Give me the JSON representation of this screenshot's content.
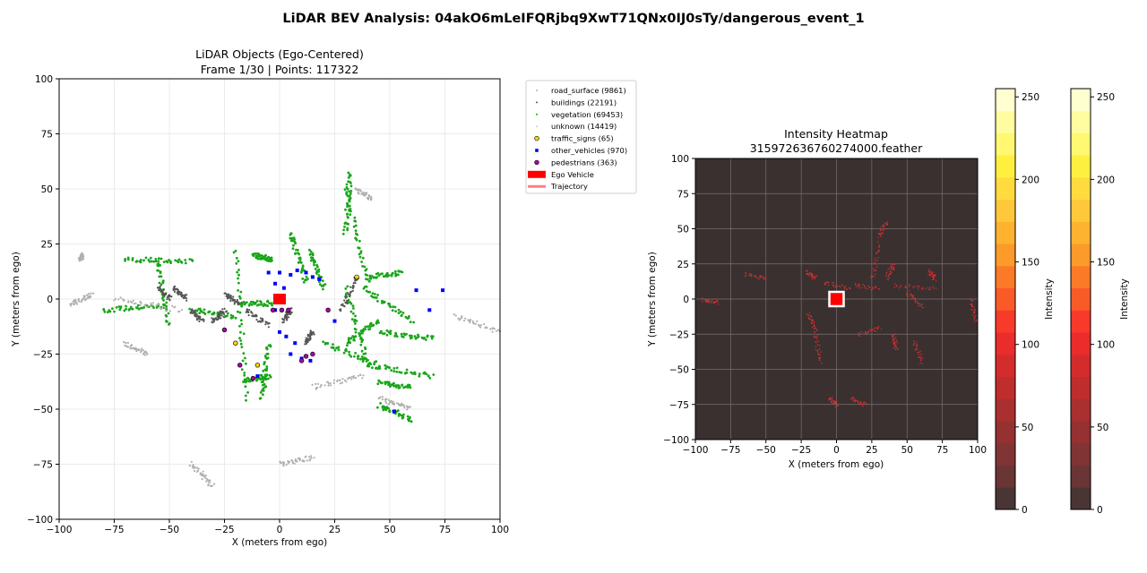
{
  "figure": {
    "title": "LiDAR BEV Analysis: 04akO6mLeIFQRjbq9XwT71QNx0IJ0sTy/dangerous_event_1"
  },
  "chart_data": [
    {
      "type": "scatter",
      "title": "LiDAR Objects (Ego-Centered)",
      "subtitle": "Frame 1/30 | Points: 117322",
      "xlabel": "X (meters from ego)",
      "ylabel": "Y (meters from ego)",
      "xlim": [
        -100,
        100
      ],
      "ylim": [
        -100,
        100
      ],
      "xticks": [
        -100,
        -75,
        -50,
        -25,
        0,
        25,
        50,
        75,
        100
      ],
      "yticks": [
        -100,
        -75,
        -50,
        -25,
        0,
        25,
        50,
        75,
        100
      ],
      "grid": true,
      "legend_position": "outside-top-right",
      "legend": [
        {
          "label": "road_surface (9861)",
          "marker": "dot",
          "color": "#b0b0b0"
        },
        {
          "label": "buildings (22191)",
          "marker": "dot",
          "color": "#555555"
        },
        {
          "label": "vegetation (69453)",
          "marker": "dot",
          "color": "#1aa51a"
        },
        {
          "label": "unknown (14419)",
          "marker": "dot",
          "color": "#cccccc"
        },
        {
          "label": "traffic_signs (65)",
          "marker": "circle",
          "color": "#ffd700"
        },
        {
          "label": "other_vehicles (970)",
          "marker": "square",
          "color": "#0000ff"
        },
        {
          "label": "pedestrians (363)",
          "marker": "circle",
          "color": "#aa00aa"
        },
        {
          "label": "Ego Vehicle",
          "marker": "rect",
          "color": "#ff0000"
        },
        {
          "label": "Trajectory",
          "marker": "line",
          "color": "#ff8080"
        }
      ],
      "series": [
        {
          "name": "vegetation",
          "color": "#1aa51a",
          "segments": [
            [
              [
                -70,
                18
              ],
              [
                -40,
                17
              ]
            ],
            [
              [
                -55,
                17
              ],
              [
                -50,
                -12
              ]
            ],
            [
              [
                -20,
                22
              ],
              [
                -15,
                -45
              ]
            ],
            [
              [
                -40,
                -5
              ],
              [
                -20,
                -8
              ]
            ],
            [
              [
                -80,
                -5
              ],
              [
                -52,
                -3
              ]
            ],
            [
              [
                -18,
                -2
              ],
              [
                -2,
                -2
              ]
            ],
            [
              [
                -5,
                -35
              ],
              [
                -16,
                -37
              ]
            ],
            [
              [
                -8,
                -45
              ],
              [
                -5,
                -20
              ]
            ],
            [
              [
                5,
                30
              ],
              [
                12,
                8
              ]
            ],
            [
              [
                14,
                22
              ],
              [
                20,
                5
              ]
            ],
            [
              [
                30,
                5
              ],
              [
                40,
                -30
              ]
            ],
            [
              [
                38,
                5
              ],
              [
                60,
                -10
              ]
            ],
            [
              [
                40,
                10
              ],
              [
                55,
                12
              ]
            ],
            [
              [
                30,
                -20
              ],
              [
                45,
                -10
              ]
            ],
            [
              [
                40,
                -30
              ],
              [
                70,
                -35
              ]
            ],
            [
              [
                45,
                -48
              ],
              [
                60,
                -55
              ]
            ],
            [
              [
                30,
                50
              ],
              [
                40,
                8
              ]
            ],
            [
              [
                32,
                58
              ],
              [
                30,
                30
              ]
            ],
            [
              [
                45,
                -15
              ],
              [
                70,
                -18
              ]
            ],
            [
              [
                20,
                -20
              ],
              [
                45,
                -30
              ]
            ],
            [
              [
                -12,
                20
              ],
              [
                -3,
                18
              ]
            ],
            [
              [
                45,
                -38
              ],
              [
                60,
                -40
              ]
            ]
          ]
        },
        {
          "name": "road_surface",
          "color": "#b0b0b0",
          "segments": [
            [
              [
                -95,
                -2
              ],
              [
                -85,
                2
              ]
            ],
            [
              [
                -75,
                0
              ],
              [
                -45,
                -5
              ]
            ],
            [
              [
                15,
                -40
              ],
              [
                38,
                -35
              ]
            ],
            [
              [
                80,
                -8
              ],
              [
                100,
                -15
              ]
            ],
            [
              [
                -40,
                -75
              ],
              [
                -30,
                -85
              ]
            ],
            [
              [
                0,
                -75
              ],
              [
                15,
                -72
              ]
            ],
            [
              [
                45,
                -45
              ],
              [
                60,
                -50
              ]
            ],
            [
              [
                -90,
                20
              ],
              [
                -90,
                18
              ]
            ],
            [
              [
                35,
                50
              ],
              [
                42,
                45
              ]
            ],
            [
              [
                -70,
                -20
              ],
              [
                -60,
                -25
              ]
            ]
          ]
        },
        {
          "name": "buildings",
          "color": "#555555",
          "segments": [
            [
              [
                -55,
                5
              ],
              [
                -50,
                0
              ]
            ],
            [
              [
                -48,
                5
              ],
              [
                -42,
                0
              ]
            ],
            [
              [
                -40,
                -5
              ],
              [
                -35,
                -10
              ]
            ],
            [
              [
                -30,
                -10
              ],
              [
                -25,
                -5
              ]
            ],
            [
              [
                -25,
                2
              ],
              [
                -18,
                -2
              ]
            ],
            [
              [
                35,
                10
              ],
              [
                28,
                -5
              ]
            ],
            [
              [
                -15,
                -5
              ],
              [
                -5,
                -12
              ]
            ],
            [
              [
                5,
                -5
              ],
              [
                2,
                -10
              ]
            ],
            [
              [
                15,
                -15
              ],
              [
                12,
                -20
              ]
            ]
          ]
        },
        {
          "name": "other_vehicles",
          "color": "#0000ff",
          "points": [
            [
              -5,
              12
            ],
            [
              0,
              12
            ],
            [
              5,
              11
            ],
            [
              8,
              13
            ],
            [
              12,
              12
            ],
            [
              15,
              10
            ],
            [
              18,
              9
            ],
            [
              -2,
              -5
            ],
            [
              0,
              -15
            ],
            [
              3,
              -17
            ],
            [
              7,
              -20
            ],
            [
              5,
              -25
            ],
            [
              10,
              -27
            ],
            [
              14,
              -28
            ],
            [
              -10,
              -35
            ],
            [
              62,
              4
            ],
            [
              68,
              -5
            ],
            [
              74,
              4
            ],
            [
              52,
              -51
            ],
            [
              25,
              -10
            ],
            [
              -2,
              7
            ],
            [
              2,
              5
            ]
          ]
        },
        {
          "name": "pedestrians",
          "color": "#aa00aa",
          "points": [
            [
              -3,
              -5
            ],
            [
              1,
              -5
            ],
            [
              4,
              -5
            ],
            [
              10,
              -28
            ],
            [
              12,
              -26
            ],
            [
              -12,
              -36
            ],
            [
              -25,
              -14
            ],
            [
              22,
              -5
            ],
            [
              15,
              -25
            ],
            [
              -18,
              -30
            ]
          ]
        },
        {
          "name": "traffic_signs",
          "color": "#ffd700",
          "points": [
            [
              -20,
              -20
            ],
            [
              35,
              10
            ],
            [
              -10,
              -30
            ]
          ]
        }
      ],
      "ego": {
        "x": 0,
        "y": 0
      }
    },
    {
      "type": "heatmap",
      "title": "Intensity Heatmap",
      "subtitle": "315972636760274000.feather",
      "xlabel": "X (meters from ego)",
      "ylabel": "Y (meters from ego)",
      "xlim": [
        -100,
        100
      ],
      "ylim": [
        -100,
        100
      ],
      "xticks": [
        -100,
        -75,
        -50,
        -25,
        0,
        25,
        50,
        75,
        100
      ],
      "yticks": [
        -100,
        -75,
        -50,
        -25,
        0,
        25,
        50,
        75,
        100
      ],
      "grid": true,
      "background_color": "#3a3030",
      "point_color": "#dd3030",
      "segments": [
        [
          [
            -65,
            18
          ],
          [
            -50,
            15
          ]
        ],
        [
          [
            -22,
            20
          ],
          [
            -15,
            15
          ]
        ],
        [
          [
            -20,
            -10
          ],
          [
            -15,
            -22
          ]
        ],
        [
          [
            -10,
            12
          ],
          [
            10,
            8
          ]
        ],
        [
          [
            12,
            10
          ],
          [
            30,
            8
          ]
        ],
        [
          [
            25,
            15
          ],
          [
            30,
            40
          ]
        ],
        [
          [
            35,
            15
          ],
          [
            40,
            25
          ]
        ],
        [
          [
            40,
            10
          ],
          [
            70,
            8
          ]
        ],
        [
          [
            50,
            5
          ],
          [
            60,
            -5
          ]
        ],
        [
          [
            15,
            -25
          ],
          [
            30,
            -20
          ]
        ],
        [
          [
            40,
            -25
          ],
          [
            42,
            -35
          ]
        ],
        [
          [
            55,
            -30
          ],
          [
            60,
            -45
          ]
        ],
        [
          [
            -15,
            -25
          ],
          [
            -12,
            -45
          ]
        ],
        [
          [
            10,
            -70
          ],
          [
            20,
            -75
          ]
        ],
        [
          [
            -5,
            -70
          ],
          [
            0,
            -75
          ]
        ],
        [
          [
            95,
            0
          ],
          [
            98,
            -15
          ]
        ],
        [
          [
            -95,
            0
          ],
          [
            -85,
            -2
          ]
        ],
        [
          [
            30,
            45
          ],
          [
            35,
            55
          ]
        ],
        [
          [
            65,
            20
          ],
          [
            70,
            15
          ]
        ]
      ],
      "ego": {
        "x": 0,
        "y": 0
      }
    },
    {
      "type": "colorbar",
      "label": "Intensity",
      "range": [
        0,
        255
      ],
      "ticks": [
        0,
        50,
        100,
        150,
        200,
        250
      ],
      "bands": [
        "#4a3535",
        "#6a3535",
        "#803434",
        "#953131",
        "#aa2f2f",
        "#c02d2d",
        "#d42c2c",
        "#ea2c2c",
        "#f83a2a",
        "#fa5a28",
        "#fb7a28",
        "#fc9a2a",
        "#fdb230",
        "#fec83a",
        "#ffdb40",
        "#fff040",
        "#fff870",
        "#fffda0",
        "#ffffd0"
      ]
    }
  ]
}
